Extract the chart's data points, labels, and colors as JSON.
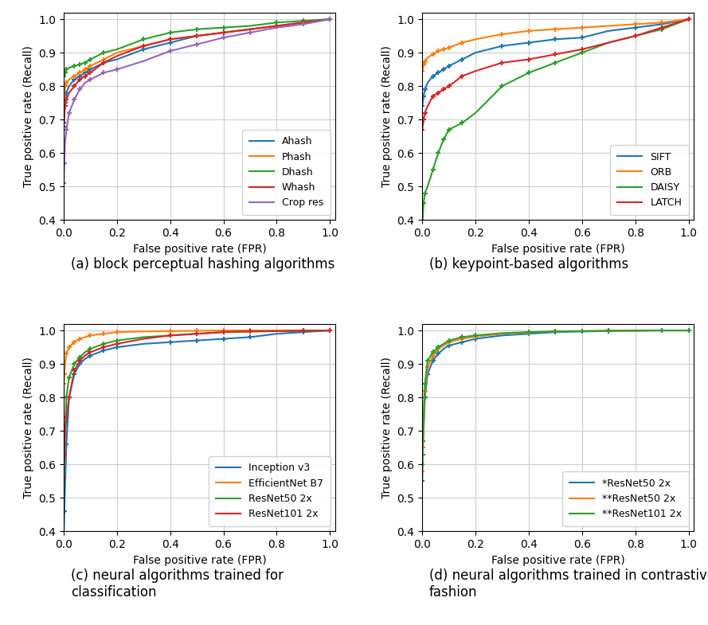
{
  "subplots": [
    {
      "label": "(a) block perceptual hashing algorithms",
      "curves": [
        {
          "name": "Ahash",
          "color": "#1f77b4",
          "x": [
            0.0,
            0.005,
            0.01,
            0.02,
            0.04,
            0.06,
            0.08,
            0.1,
            0.15,
            0.2,
            0.3,
            0.4,
            0.5,
            0.6,
            0.7,
            0.8,
            0.9,
            1.0
          ],
          "y": [
            0.68,
            0.75,
            0.78,
            0.8,
            0.82,
            0.83,
            0.84,
            0.85,
            0.87,
            0.88,
            0.91,
            0.93,
            0.95,
            0.96,
            0.97,
            0.98,
            0.99,
            1.0
          ]
        },
        {
          "name": "Phash",
          "color": "#ff7f0e",
          "x": [
            0.0,
            0.005,
            0.01,
            0.02,
            0.04,
            0.06,
            0.08,
            0.1,
            0.15,
            0.2,
            0.3,
            0.4,
            0.5,
            0.6,
            0.7,
            0.8,
            0.9,
            1.0
          ],
          "y": [
            0.75,
            0.8,
            0.81,
            0.82,
            0.83,
            0.84,
            0.85,
            0.86,
            0.88,
            0.9,
            0.92,
            0.94,
            0.95,
            0.96,
            0.97,
            0.98,
            0.99,
            1.0
          ]
        },
        {
          "name": "Dhash",
          "color": "#2ca02c",
          "x": [
            0.0,
            0.005,
            0.01,
            0.02,
            0.04,
            0.06,
            0.08,
            0.1,
            0.15,
            0.2,
            0.3,
            0.4,
            0.5,
            0.6,
            0.7,
            0.8,
            0.9,
            1.0
          ],
          "y": [
            0.83,
            0.84,
            0.85,
            0.855,
            0.86,
            0.865,
            0.87,
            0.88,
            0.9,
            0.91,
            0.94,
            0.96,
            0.97,
            0.975,
            0.98,
            0.99,
            0.995,
            1.0
          ]
        },
        {
          "name": "Whash",
          "color": "#d62728",
          "x": [
            0.0,
            0.005,
            0.01,
            0.02,
            0.04,
            0.06,
            0.08,
            0.1,
            0.15,
            0.2,
            0.3,
            0.4,
            0.5,
            0.6,
            0.7,
            0.8,
            0.9,
            1.0
          ],
          "y": [
            0.69,
            0.74,
            0.76,
            0.78,
            0.8,
            0.82,
            0.83,
            0.84,
            0.87,
            0.89,
            0.92,
            0.94,
            0.95,
            0.96,
            0.97,
            0.98,
            0.99,
            1.0
          ]
        },
        {
          "name": "Crop res",
          "color": "#9467bd",
          "x": [
            0.0,
            0.002,
            0.005,
            0.01,
            0.02,
            0.04,
            0.06,
            0.08,
            0.1,
            0.15,
            0.2,
            0.3,
            0.4,
            0.5,
            0.6,
            0.7,
            0.8,
            0.9,
            1.0
          ],
          "y": [
            0.51,
            0.57,
            0.63,
            0.67,
            0.72,
            0.76,
            0.79,
            0.81,
            0.82,
            0.84,
            0.85,
            0.875,
            0.905,
            0.925,
            0.945,
            0.96,
            0.975,
            0.985,
            1.0
          ]
        }
      ],
      "ylim": [
        0.4,
        1.02
      ],
      "xlim": [
        0.0,
        1.02
      ],
      "legend_loc": "lower right"
    },
    {
      "label": "(b) keypoint-based algorithms",
      "curves": [
        {
          "name": "SIFT",
          "color": "#1f77b4",
          "x": [
            0.0,
            0.005,
            0.01,
            0.02,
            0.04,
            0.06,
            0.08,
            0.1,
            0.15,
            0.2,
            0.3,
            0.4,
            0.5,
            0.6,
            0.7,
            0.8,
            0.9,
            1.0
          ],
          "y": [
            0.74,
            0.77,
            0.79,
            0.81,
            0.83,
            0.84,
            0.85,
            0.86,
            0.88,
            0.9,
            0.92,
            0.93,
            0.94,
            0.945,
            0.965,
            0.975,
            0.985,
            1.0
          ]
        },
        {
          "name": "ORB",
          "color": "#ff7f0e",
          "x": [
            0.0,
            0.005,
            0.01,
            0.02,
            0.04,
            0.06,
            0.08,
            0.1,
            0.15,
            0.2,
            0.3,
            0.4,
            0.5,
            0.6,
            0.7,
            0.8,
            0.9,
            1.0
          ],
          "y": [
            0.845,
            0.865,
            0.875,
            0.885,
            0.895,
            0.905,
            0.91,
            0.915,
            0.93,
            0.94,
            0.955,
            0.965,
            0.97,
            0.975,
            0.98,
            0.985,
            0.99,
            1.0
          ]
        },
        {
          "name": "DAISY",
          "color": "#2ca02c",
          "x": [
            0.0,
            0.005,
            0.01,
            0.02,
            0.04,
            0.06,
            0.08,
            0.1,
            0.15,
            0.2,
            0.3,
            0.4,
            0.5,
            0.6,
            0.7,
            0.8,
            0.9,
            1.0
          ],
          "y": [
            0.38,
            0.45,
            0.48,
            0.5,
            0.55,
            0.6,
            0.64,
            0.67,
            0.69,
            0.72,
            0.8,
            0.84,
            0.87,
            0.9,
            0.93,
            0.95,
            0.97,
            1.0
          ]
        },
        {
          "name": "LATCH",
          "color": "#d62728",
          "x": [
            0.0,
            0.005,
            0.01,
            0.02,
            0.04,
            0.06,
            0.08,
            0.1,
            0.15,
            0.2,
            0.3,
            0.4,
            0.5,
            0.6,
            0.7,
            0.8,
            0.9,
            1.0
          ],
          "y": [
            0.67,
            0.7,
            0.72,
            0.74,
            0.77,
            0.78,
            0.79,
            0.8,
            0.83,
            0.845,
            0.87,
            0.88,
            0.895,
            0.91,
            0.93,
            0.95,
            0.975,
            1.0
          ]
        }
      ],
      "ylim": [
        0.4,
        1.02
      ],
      "xlim": [
        0.0,
        1.02
      ],
      "legend_loc": "lower right"
    },
    {
      "label": "(c) neural algorithms trained for\nclassification",
      "curves": [
        {
          "name": "Inception v3",
          "color": "#1f77b4",
          "x": [
            0.0,
            0.002,
            0.005,
            0.01,
            0.02,
            0.04,
            0.06,
            0.08,
            0.1,
            0.15,
            0.2,
            0.3,
            0.4,
            0.5,
            0.6,
            0.7,
            0.8,
            0.9,
            1.0
          ],
          "y": [
            0.39,
            0.46,
            0.53,
            0.66,
            0.8,
            0.87,
            0.9,
            0.915,
            0.925,
            0.94,
            0.95,
            0.96,
            0.965,
            0.97,
            0.975,
            0.98,
            0.99,
            0.995,
            1.0
          ]
        },
        {
          "name": "EfficientNet B7",
          "color": "#ff7f0e",
          "x": [
            0.0,
            0.002,
            0.005,
            0.01,
            0.02,
            0.04,
            0.06,
            0.08,
            0.1,
            0.15,
            0.2,
            0.3,
            0.4,
            0.5,
            0.6,
            0.7,
            0.8,
            0.9,
            1.0
          ],
          "y": [
            0.84,
            0.87,
            0.9,
            0.93,
            0.95,
            0.965,
            0.975,
            0.98,
            0.985,
            0.99,
            0.995,
            0.997,
            0.998,
            0.999,
            1.0,
            1.0,
            1.0,
            1.0,
            1.0
          ]
        },
        {
          "name": "ResNet50 2x",
          "color": "#2ca02c",
          "x": [
            0.0,
            0.002,
            0.005,
            0.01,
            0.02,
            0.04,
            0.06,
            0.08,
            0.1,
            0.15,
            0.2,
            0.3,
            0.4,
            0.5,
            0.6,
            0.7,
            0.8,
            0.9,
            1.0
          ],
          "y": [
            0.55,
            0.62,
            0.69,
            0.8,
            0.86,
            0.9,
            0.92,
            0.935,
            0.945,
            0.96,
            0.97,
            0.98,
            0.985,
            0.99,
            0.995,
            0.997,
            0.998,
            0.999,
            1.0
          ]
        },
        {
          "name": "ResNet101 2x",
          "color": "#d62728",
          "x": [
            0.0,
            0.002,
            0.005,
            0.01,
            0.02,
            0.04,
            0.06,
            0.08,
            0.1,
            0.15,
            0.2,
            0.3,
            0.4,
            0.5,
            0.6,
            0.7,
            0.8,
            0.9,
            1.0
          ],
          "y": [
            0.56,
            0.63,
            0.69,
            0.74,
            0.8,
            0.88,
            0.91,
            0.925,
            0.935,
            0.95,
            0.96,
            0.975,
            0.985,
            0.99,
            0.995,
            0.997,
            0.998,
            0.999,
            1.0
          ]
        }
      ],
      "ylim": [
        0.4,
        1.02
      ],
      "xlim": [
        0.0,
        1.02
      ],
      "legend_loc": "lower right"
    },
    {
      "label": "(d) neural algorithms trained in contrastive\nfashion",
      "curves": [
        {
          "name": "*ResNet50 2x",
          "color": "#1f77b4",
          "x": [
            0.0,
            0.002,
            0.005,
            0.01,
            0.02,
            0.04,
            0.06,
            0.08,
            0.1,
            0.15,
            0.2,
            0.3,
            0.4,
            0.5,
            0.6,
            0.7,
            0.8,
            0.9,
            1.0
          ],
          "y": [
            0.55,
            0.63,
            0.7,
            0.8,
            0.87,
            0.91,
            0.93,
            0.945,
            0.955,
            0.965,
            0.975,
            0.985,
            0.99,
            0.995,
            0.997,
            0.998,
            0.999,
            1.0,
            1.0
          ]
        },
        {
          "name": "**ResNet50 2x",
          "color": "#ff7f0e",
          "x": [
            0.0,
            0.002,
            0.005,
            0.01,
            0.02,
            0.04,
            0.06,
            0.08,
            0.1,
            0.15,
            0.2,
            0.3,
            0.4,
            0.5,
            0.6,
            0.7,
            0.8,
            0.9,
            1.0
          ],
          "y": [
            0.58,
            0.65,
            0.72,
            0.82,
            0.89,
            0.925,
            0.945,
            0.955,
            0.965,
            0.975,
            0.982,
            0.99,
            0.994,
            0.997,
            0.998,
            0.999,
            0.999,
            1.0,
            1.0
          ]
        },
        {
          "name": "**ResNet101 2x",
          "color": "#2ca02c",
          "x": [
            0.0,
            0.002,
            0.005,
            0.01,
            0.02,
            0.04,
            0.06,
            0.08,
            0.1,
            0.15,
            0.2,
            0.3,
            0.4,
            0.5,
            0.6,
            0.7,
            0.8,
            0.9,
            1.0
          ],
          "y": [
            0.6,
            0.67,
            0.74,
            0.84,
            0.91,
            0.935,
            0.95,
            0.96,
            0.97,
            0.98,
            0.985,
            0.992,
            0.995,
            0.997,
            0.998,
            0.999,
            1.0,
            1.0,
            1.0
          ]
        }
      ],
      "ylim": [
        0.4,
        1.02
      ],
      "xlim": [
        0.0,
        1.02
      ],
      "legend_loc": "lower right"
    }
  ],
  "xlabel": "False positive rate (FPR)",
  "ylabel": "True positive rate (Recall)",
  "grid_color": "#cccccc",
  "xticks": [
    0.0,
    0.2,
    0.4,
    0.6,
    0.8,
    1.0
  ],
  "yticks": [
    0.4,
    0.5,
    0.6,
    0.7,
    0.8,
    0.9,
    1.0
  ],
  "caption_fontsize": 12,
  "axis_fontsize": 10,
  "legend_fontsize": 9
}
